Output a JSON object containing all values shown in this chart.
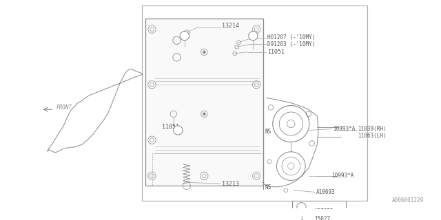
{
  "bg_color": "#ffffff",
  "line_color": "#aaaaaa",
  "dark_line": "#888888",
  "text_color": "#555555",
  "fig_width": 6.4,
  "fig_height": 3.2,
  "dpi": 100,
  "watermark": "A006001229",
  "legend": [
    {
      "symbol": "1",
      "label": "15027"
    },
    {
      "symbol": "2",
      "label": "A91055"
    }
  ]
}
